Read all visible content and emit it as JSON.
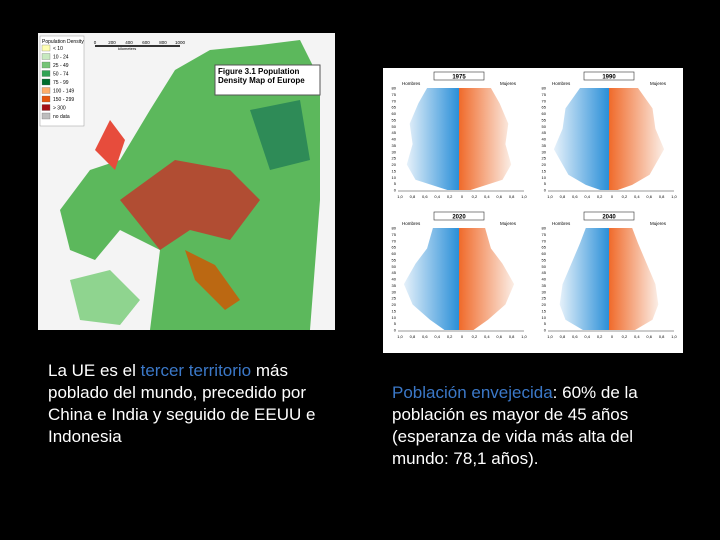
{
  "map": {
    "legend_title": "Population Density",
    "legend": [
      "< 10",
      "10 - 24",
      "25 - 49",
      "50 - 74",
      "75 - 99",
      "100 - 149",
      "150 - 299",
      "> 300",
      "no data"
    ],
    "scale": [
      "0",
      "200",
      "400",
      "600",
      "800",
      "1000"
    ],
    "scale_unit": "kilometers",
    "figure_title": "Figure 3.1 Population Density Map of Europe"
  },
  "pyramids": {
    "years": [
      "1975",
      "1990",
      "2020",
      "2040"
    ],
    "men": "Hombres",
    "women": "Mujeres",
    "ages": [
      "80",
      "75",
      "70",
      "65",
      "60",
      "55",
      "50",
      "45",
      "40",
      "35",
      "30",
      "25",
      "20",
      "15",
      "10",
      "5",
      "0"
    ],
    "xticks": [
      "1,0",
      "0,8",
      "0,6",
      "0,4",
      "0,2",
      "0",
      "0,2",
      "0,4",
      "0,6",
      "0,8",
      "1,0"
    ]
  },
  "left_text": {
    "before": "La UE es el ",
    "highlight": "tercer territorio",
    "after": " más poblado del mundo, precedido por China e India y seguido de EEUU e Indonesia"
  },
  "right_text": {
    "highlight": "Población envejecida",
    "after": ": 60% de la población es mayor de 45 años (esperanza de vida más alta del mundo: 78,1 años)."
  }
}
